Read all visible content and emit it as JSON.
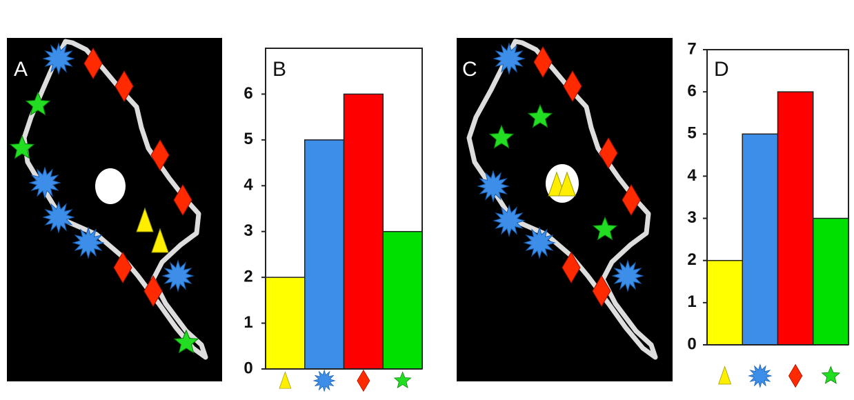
{
  "panels": [
    {
      "label": "A"
    },
    {
      "label": "C"
    }
  ],
  "chart_data": [
    {
      "type": "bar",
      "title": "B",
      "categories": [
        null,
        null,
        null,
        null
      ],
      "values": [
        2,
        5,
        6,
        3
      ],
      "colors": [
        "#ffff00",
        "#3d8ee8",
        "#ff0000",
        "#00e000"
      ],
      "ylim": [
        0,
        7
      ],
      "yticks": [
        0,
        1,
        2,
        3,
        4,
        5,
        6
      ]
    },
    {
      "type": "bar",
      "title": "D",
      "categories": [
        null,
        null,
        null,
        null
      ],
      "values": [
        2,
        5,
        6,
        3
      ],
      "colors": [
        "#ffff00",
        "#3d8ee8",
        "#ff0000",
        "#00e000"
      ],
      "ylim": [
        0,
        7
      ],
      "yticks": [
        0,
        1,
        2,
        3,
        4,
        5,
        6,
        7
      ]
    }
  ]
}
